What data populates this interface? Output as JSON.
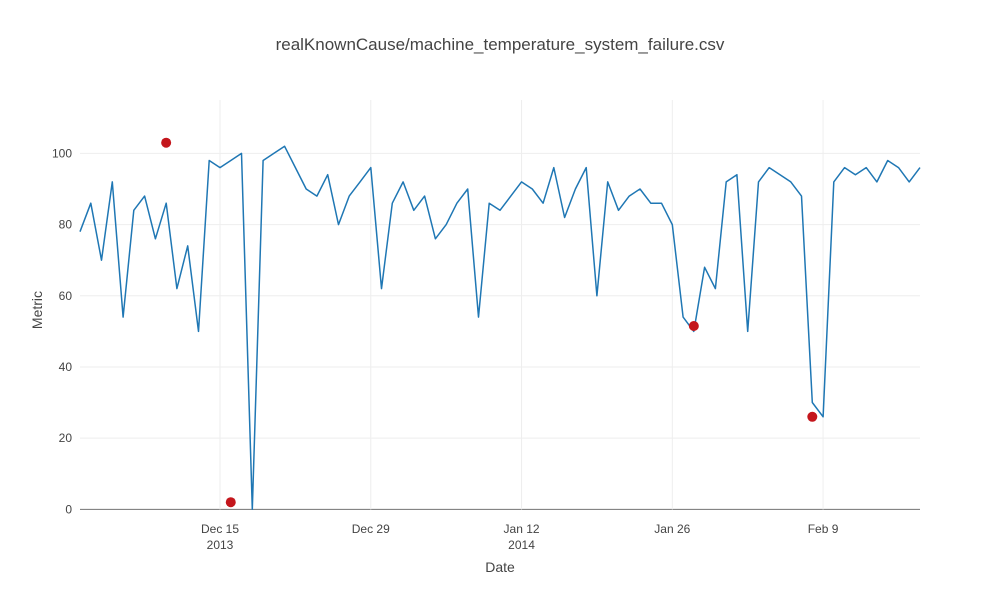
{
  "chart_data": {
    "type": "line",
    "title": "realKnownCause/machine_temperature_system_failure.csv",
    "xlabel": "Date",
    "ylabel": "Metric",
    "xlim": [
      "2013-12-02",
      "2014-02-18"
    ],
    "ylim": [
      -3,
      115
    ],
    "grid": true,
    "legend": "none",
    "x_ticks": [
      {
        "date": "2013-12-15",
        "label": "Dec 15",
        "sublabel": "2013"
      },
      {
        "date": "2013-12-29",
        "label": "Dec 29",
        "sublabel": ""
      },
      {
        "date": "2014-01-12",
        "label": "Jan 12",
        "sublabel": "2014"
      },
      {
        "date": "2014-01-26",
        "label": "Jan 26",
        "sublabel": ""
      },
      {
        "date": "2014-02-09",
        "label": "Feb 9",
        "sublabel": ""
      }
    ],
    "y_ticks": [
      0,
      20,
      40,
      60,
      80,
      100
    ],
    "colors": {
      "line": "#1f77b4",
      "anomaly": "#c4161c"
    },
    "series": [
      {
        "x": [
          "2013-12-02",
          "2013-12-03",
          "2013-12-04",
          "2013-12-05",
          "2013-12-06",
          "2013-12-07",
          "2013-12-08",
          "2013-12-09",
          "2013-12-10",
          "2013-12-11",
          "2013-12-12",
          "2013-12-13",
          "2013-12-14",
          "2013-12-15",
          "2013-12-16",
          "2013-12-17",
          "2013-12-18",
          "2013-12-19",
          "2013-12-20",
          "2013-12-21",
          "2013-12-22",
          "2013-12-23",
          "2013-12-24",
          "2013-12-25",
          "2013-12-26",
          "2013-12-27",
          "2013-12-28",
          "2013-12-29",
          "2013-12-30",
          "2013-12-31",
          "2014-01-01",
          "2014-01-02",
          "2014-01-03",
          "2014-01-04",
          "2014-01-05",
          "2014-01-06",
          "2014-01-07",
          "2014-01-08",
          "2014-01-09",
          "2014-01-10",
          "2014-01-11",
          "2014-01-12",
          "2014-01-13",
          "2014-01-14",
          "2014-01-15",
          "2014-01-16",
          "2014-01-17",
          "2014-01-18",
          "2014-01-19",
          "2014-01-20",
          "2014-01-21",
          "2014-01-22",
          "2014-01-23",
          "2014-01-24",
          "2014-01-25",
          "2014-01-26",
          "2014-01-27",
          "2014-01-28",
          "2014-01-29",
          "2014-01-30",
          "2014-01-31",
          "2014-02-01",
          "2014-02-02",
          "2014-02-03",
          "2014-02-04",
          "2014-02-05",
          "2014-02-06",
          "2014-02-07",
          "2014-02-08",
          "2014-02-09",
          "2014-02-10",
          "2014-02-11",
          "2014-02-12",
          "2014-02-13",
          "2014-02-14",
          "2014-02-15",
          "2014-02-16",
          "2014-02-17",
          "2014-02-18"
        ],
        "y": [
          78,
          86,
          70,
          92,
          54,
          84,
          88,
          76,
          86,
          62,
          74,
          50,
          98,
          96,
          98,
          100,
          0,
          98,
          100,
          102,
          96,
          90,
          88,
          94,
          80,
          88,
          92,
          96,
          62,
          86,
          92,
          84,
          88,
          76,
          80,
          86,
          90,
          54,
          86,
          84,
          88,
          92,
          90,
          86,
          96,
          82,
          90,
          96,
          60,
          92,
          84,
          88,
          90,
          86,
          86,
          80,
          54,
          50,
          68,
          62,
          92,
          94,
          50,
          92,
          96,
          94,
          92,
          88,
          30,
          26,
          92,
          96,
          94,
          96,
          92,
          98,
          96,
          92,
          96
        ]
      }
    ],
    "anomalies": [
      {
        "x": "2013-12-10",
        "y": 103
      },
      {
        "x": "2013-12-16",
        "y": 2
      },
      {
        "x": "2014-01-28",
        "y": 51.5
      },
      {
        "x": "2014-02-08",
        "y": 26
      }
    ]
  }
}
